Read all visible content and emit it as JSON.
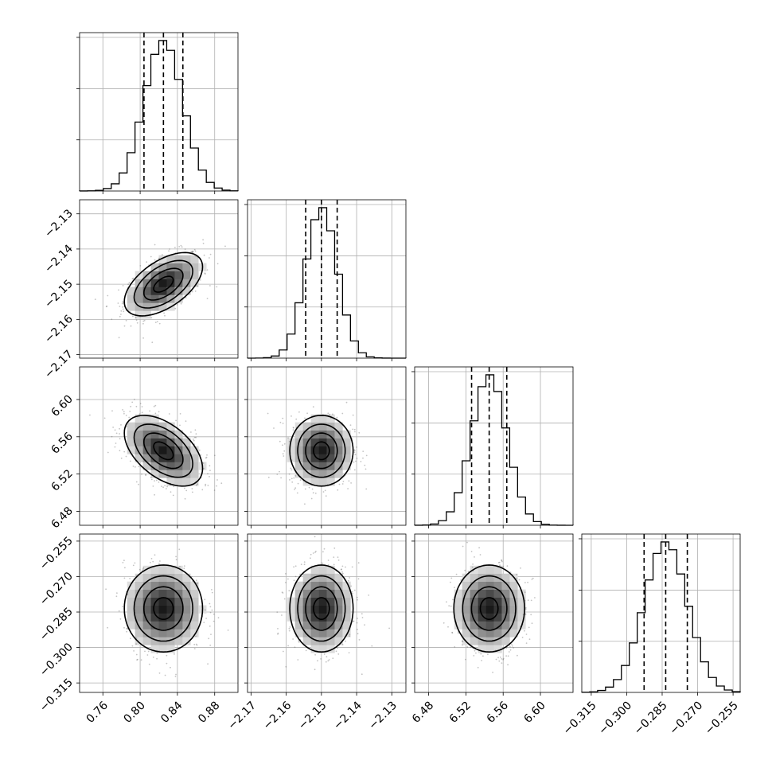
{
  "chart_data": {
    "type": "corner",
    "grid": true,
    "quantiles": [
      0.16,
      0.5,
      0.84
    ],
    "parameters": [
      {
        "mean": 0.825,
        "sd": 0.021,
        "range": [
          0.735,
          0.905
        ],
        "ticks": [
          0.76,
          0.8,
          0.84,
          0.88
        ],
        "tick_labels": [
          "0.76",
          "0.80",
          "0.84",
          "0.88"
        ]
      },
      {
        "mean": -2.15,
        "sd": 0.0045,
        "range": [
          -2.171,
          -2.126
        ],
        "ticks": [
          -2.17,
          -2.16,
          -2.15,
          -2.14,
          -2.13
        ],
        "tick_labels": [
          "−2.17",
          "−2.16",
          "−2.15",
          "−2.14",
          "−2.13"
        ]
      },
      {
        "mean": 6.545,
        "sd": 0.019,
        "range": [
          6.465,
          6.635
        ],
        "ticks": [
          6.48,
          6.52,
          6.56,
          6.6
        ],
        "tick_labels": [
          "6.48",
          "6.52",
          "6.56",
          "6.60"
        ]
      },
      {
        "mean": -0.2835,
        "sd": 0.0092,
        "range": [
          -0.319,
          -0.252
        ],
        "ticks": [
          -0.315,
          -0.3,
          -0.285,
          -0.27,
          -0.255
        ],
        "tick_labels": [
          "−0.315",
          "−0.300",
          "−0.285",
          "−0.270",
          "−0.255"
        ]
      }
    ],
    "correlations": [
      [
        1.0,
        0.55,
        -0.5,
        0.0
      ],
      [
        0.55,
        1.0,
        0.0,
        0.0
      ],
      [
        -0.5,
        0.0,
        1.0,
        0.0
      ],
      [
        0.0,
        0.0,
        0.0,
        1.0
      ]
    ],
    "histogram_bins": 20,
    "contour_levels_sigma": [
      0.5,
      1.0,
      1.5,
      2.0
    ],
    "colors": {
      "line": "#000000",
      "grid": "#b0b0b0",
      "points": "#555555"
    }
  }
}
